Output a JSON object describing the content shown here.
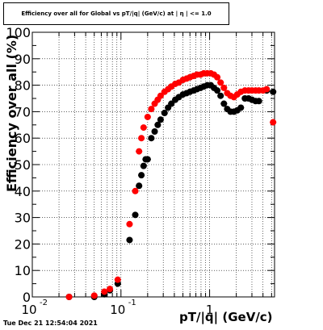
{
  "chart_data": {
    "type": "scatter",
    "title": "Efficiency over all for Global vs pT/|q| (GeV/c) at | η | <= 1.0",
    "xlabel": "pT/|q| (GeV/c)",
    "ylabel": "Efficiency over all (%)",
    "xscale": "log",
    "xlim": [
      0.01,
      5.4
    ],
    "ylim": [
      0,
      100
    ],
    "grid": true,
    "x_tick_labels": [
      {
        "x": 0.01,
        "label": "10",
        "exp": "-2"
      },
      {
        "x": 0.1,
        "label": "10",
        "exp": "-1"
      },
      {
        "x": 1,
        "label": "1",
        "exp": ""
      }
    ],
    "y_ticks": [
      0,
      10,
      20,
      30,
      40,
      50,
      60,
      70,
      80,
      90,
      100
    ],
    "series": [
      {
        "color": "#000000",
        "points": [
          [
            0.026,
            0
          ],
          [
            0.05,
            0
          ],
          [
            0.065,
            1
          ],
          [
            0.075,
            2.5
          ],
          [
            0.092,
            5
          ],
          [
            0.125,
            21.5
          ],
          [
            0.145,
            31
          ],
          [
            0.16,
            42
          ],
          [
            0.17,
            46
          ],
          [
            0.18,
            49.5
          ],
          [
            0.19,
            52
          ],
          [
            0.2,
            52
          ],
          [
            0.22,
            60
          ],
          [
            0.24,
            62.5
          ],
          [
            0.26,
            65
          ],
          [
            0.28,
            67
          ],
          [
            0.31,
            69.5
          ],
          [
            0.34,
            71.5
          ],
          [
            0.37,
            73
          ],
          [
            0.41,
            74.5
          ],
          [
            0.45,
            75.5
          ],
          [
            0.5,
            76.5
          ],
          [
            0.55,
            77
          ],
          [
            0.6,
            77.5
          ],
          [
            0.66,
            78
          ],
          [
            0.72,
            78.5
          ],
          [
            0.79,
            79
          ],
          [
            0.86,
            79.5
          ],
          [
            0.94,
            80
          ],
          [
            1.03,
            80
          ],
          [
            1.12,
            79
          ],
          [
            1.22,
            78
          ],
          [
            1.33,
            76
          ],
          [
            1.45,
            73
          ],
          [
            1.58,
            71
          ],
          [
            1.72,
            70
          ],
          [
            1.88,
            70
          ],
          [
            2.05,
            70.5
          ],
          [
            2.25,
            71.5
          ],
          [
            2.5,
            75
          ],
          [
            2.75,
            75
          ],
          [
            3.0,
            74.5
          ],
          [
            3.3,
            74
          ],
          [
            3.6,
            74
          ],
          [
            4.4,
            78
          ],
          [
            5.2,
            77.5
          ]
        ]
      },
      {
        "color": "#ff0000",
        "points": [
          [
            0.026,
            0
          ],
          [
            0.05,
            0.5
          ],
          [
            0.065,
            2
          ],
          [
            0.075,
            3
          ],
          [
            0.092,
            6.5
          ],
          [
            0.125,
            27.5
          ],
          [
            0.145,
            40
          ],
          [
            0.16,
            55
          ],
          [
            0.17,
            60
          ],
          [
            0.18,
            64
          ],
          [
            0.2,
            68
          ],
          [
            0.22,
            71
          ],
          [
            0.24,
            73
          ],
          [
            0.26,
            74.5
          ],
          [
            0.28,
            76
          ],
          [
            0.31,
            77.5
          ],
          [
            0.34,
            78.5
          ],
          [
            0.37,
            79.5
          ],
          [
            0.41,
            80.5
          ],
          [
            0.45,
            81
          ],
          [
            0.5,
            82
          ],
          [
            0.55,
            82.5
          ],
          [
            0.6,
            83
          ],
          [
            0.66,
            83.5
          ],
          [
            0.72,
            84
          ],
          [
            0.79,
            84
          ],
          [
            0.86,
            84.5
          ],
          [
            0.94,
            84.5
          ],
          [
            1.03,
            84.5
          ],
          [
            1.12,
            84
          ],
          [
            1.22,
            83
          ],
          [
            1.33,
            81
          ],
          [
            1.45,
            79
          ],
          [
            1.58,
            77
          ],
          [
            1.72,
            76
          ],
          [
            1.88,
            75.5
          ],
          [
            2.05,
            76.5
          ],
          [
            2.25,
            77.5
          ],
          [
            2.5,
            78
          ],
          [
            2.75,
            78
          ],
          [
            3.0,
            78
          ],
          [
            3.3,
            78
          ],
          [
            3.6,
            78
          ],
          [
            4.0,
            78
          ],
          [
            4.4,
            78.5
          ],
          [
            5.2,
            66
          ]
        ]
      }
    ]
  },
  "footer": "Tue Dec 21 12:54:04 2021"
}
